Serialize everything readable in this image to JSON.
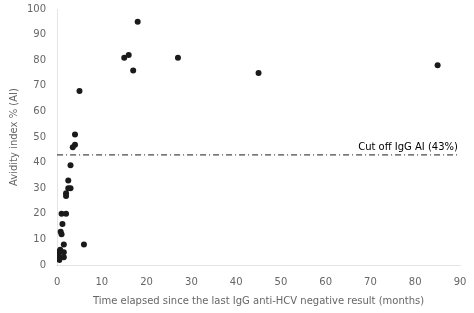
{
  "chart_data": {
    "type": "scatter",
    "x": [
      0.2,
      0.3,
      0.5,
      0.5,
      0.5,
      0.7,
      0.8,
      1.0,
      1.0,
      1.2,
      1.5,
      1.5,
      1.5,
      2.0,
      2.0,
      2.0,
      2.5,
      2.5,
      3.0,
      3.0,
      3.5,
      4.0,
      4.0,
      5.0,
      6.0,
      15.0,
      16.0,
      17.0,
      18.0,
      27.0,
      45.0,
      85.0
    ],
    "values": [
      5,
      4,
      5,
      3,
      2,
      6,
      13,
      12,
      20,
      16,
      8,
      5,
      3,
      28,
      27,
      20,
      30,
      33,
      30,
      39,
      46,
      47,
      51,
      68,
      8,
      81,
      82,
      76,
      95,
      81,
      75,
      78
    ],
    "color": "#1a1a1a",
    "marker": "circle",
    "xlabel": "Time elapsed since the last IgG anti-HCV negative result (months)",
    "ylabel": "Avidity index % (AI)",
    "xlim": [
      0,
      90
    ],
    "ylim": [
      0,
      100
    ],
    "xticks": [
      0,
      10,
      20,
      30,
      40,
      50,
      60,
      70,
      80,
      90
    ],
    "yticks": [
      0,
      10,
      20,
      30,
      40,
      50,
      60,
      70,
      80,
      90,
      100
    ],
    "grid": false,
    "annotations": [
      {
        "y": 43,
        "text": "Cut off IgG AI (43%)",
        "color": "#1a1a1a",
        "line_style": "dashdot"
      }
    ]
  }
}
